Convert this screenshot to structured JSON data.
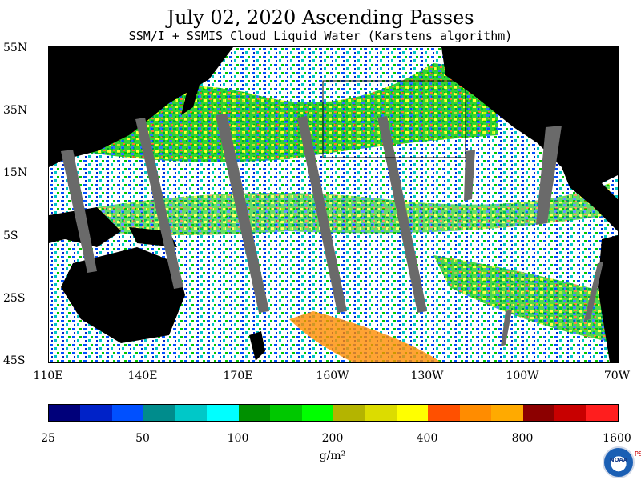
{
  "title": "July 02, 2020  Ascending Passes",
  "subtitle": "SSM/I + SSMIS Cloud Liquid Water (Karstens algorithm)",
  "map": {
    "lat_labels": [
      "55N",
      "35N",
      "15N",
      "5S",
      "25S",
      "45S"
    ],
    "lon_labels": [
      "110E",
      "140E",
      "170E",
      "160W",
      "130W",
      "100W",
      "70W"
    ]
  },
  "colorbar": {
    "colors": [
      "#00007a",
      "#0022c8",
      "#0050ff",
      "#008c8c",
      "#00c8c8",
      "#00ffff",
      "#009000",
      "#00c800",
      "#00ff00",
      "#b4b400",
      "#dcdc00",
      "#ffff00",
      "#ff5000",
      "#ff8c00",
      "#ffaa00",
      "#8c0000",
      "#c80000",
      "#ff1e1e"
    ],
    "labels": [
      "25",
      "50",
      "100",
      "200",
      "400",
      "800",
      "1600"
    ],
    "unit": "g/m²"
  },
  "logo": {
    "text": "NOAA",
    "side_text": "PSL"
  }
}
